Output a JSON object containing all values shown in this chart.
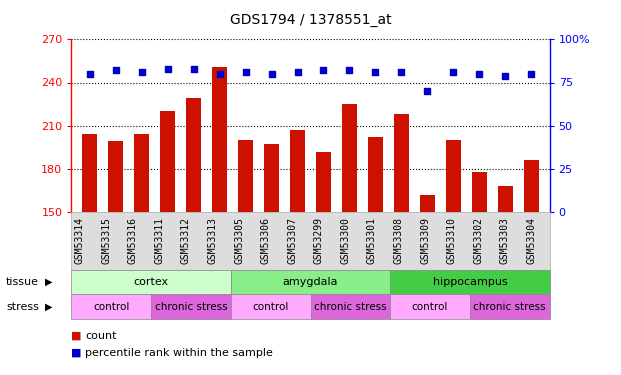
{
  "title": "GDS1794 / 1378551_at",
  "samples": [
    "GSM53314",
    "GSM53315",
    "GSM53316",
    "GSM53311",
    "GSM53312",
    "GSM53313",
    "GSM53305",
    "GSM53306",
    "GSM53307",
    "GSM53299",
    "GSM53300",
    "GSM53301",
    "GSM53308",
    "GSM53309",
    "GSM53310",
    "GSM53302",
    "GSM53303",
    "GSM53304"
  ],
  "counts": [
    204,
    199,
    204,
    220,
    229,
    251,
    200,
    197,
    207,
    192,
    225,
    202,
    218,
    162,
    200,
    178,
    168,
    186
  ],
  "percentiles": [
    80,
    82,
    81,
    83,
    83,
    80,
    81,
    80,
    81,
    82,
    82,
    81,
    81,
    70,
    81,
    80,
    79,
    80
  ],
  "bar_color": "#cc1100",
  "dot_color": "#0000cc",
  "ylim_left": [
    150,
    270
  ],
  "yticks_left": [
    150,
    180,
    210,
    240,
    270
  ],
  "ylim_right": [
    0,
    100
  ],
  "yticks_right": [
    0,
    25,
    50,
    75,
    100
  ],
  "tissue_groups": [
    {
      "label": "cortex",
      "start": 0,
      "end": 6,
      "color": "#ccffcc"
    },
    {
      "label": "amygdala",
      "start": 6,
      "end": 12,
      "color": "#88ee88"
    },
    {
      "label": "hippocampus",
      "start": 12,
      "end": 18,
      "color": "#44cc44"
    }
  ],
  "stress_groups": [
    {
      "label": "control",
      "start": 0,
      "end": 3,
      "color": "#ffaaff"
    },
    {
      "label": "chronic stress",
      "start": 3,
      "end": 6,
      "color": "#dd66dd"
    },
    {
      "label": "control",
      "start": 6,
      "end": 9,
      "color": "#ffaaff"
    },
    {
      "label": "chronic stress",
      "start": 9,
      "end": 12,
      "color": "#dd66dd"
    },
    {
      "label": "control",
      "start": 12,
      "end": 15,
      "color": "#ffaaff"
    },
    {
      "label": "chronic stress",
      "start": 15,
      "end": 18,
      "color": "#dd66dd"
    }
  ],
  "tissue_label": "tissue",
  "stress_label": "stress",
  "legend_count_label": "count",
  "legend_pct_label": "percentile rank within the sample",
  "background_color": "#ffffff",
  "plot_bg_color": "#ffffff",
  "xtick_bg_color": "#dddddd",
  "title_fontsize": 10,
  "tick_label_fontsize": 7,
  "row_label_fontsize": 8,
  "legend_fontsize": 8
}
